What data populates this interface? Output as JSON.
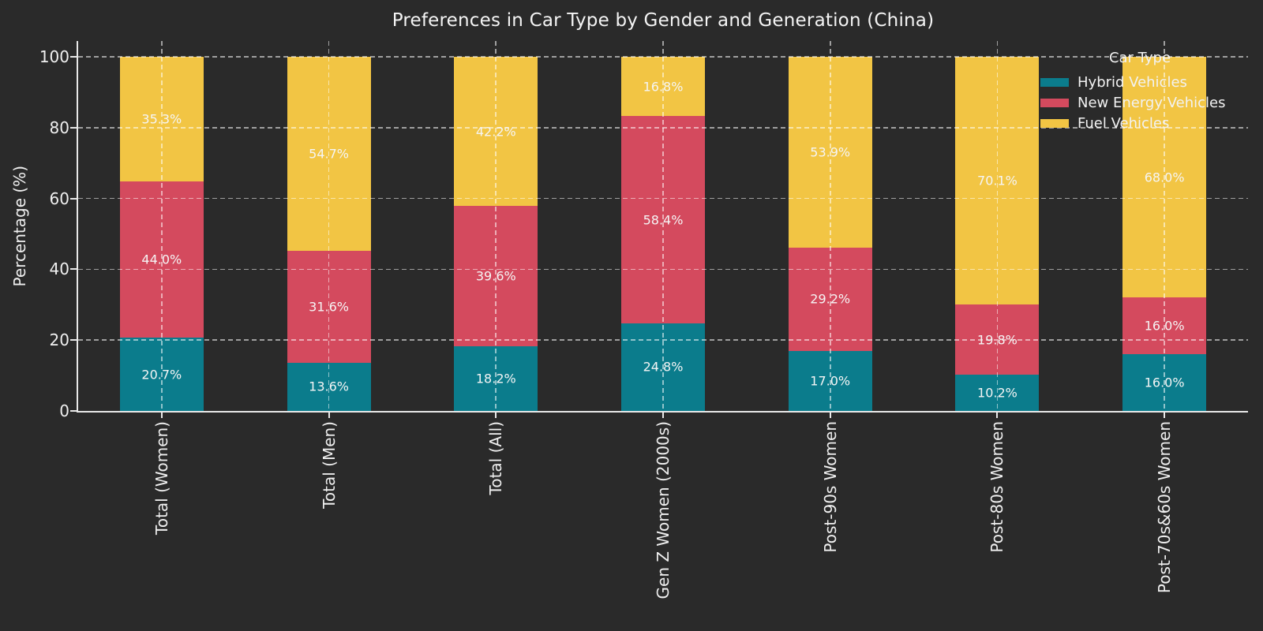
{
  "chart_data": {
    "type": "bar",
    "stacked": true,
    "title": "Preferences in Car Type by Gender and Generation (China)",
    "xlabel": "",
    "ylabel": "Percentage (%)",
    "ylim": [
      0,
      105
    ],
    "yticks": [
      0,
      20,
      40,
      60,
      80,
      100
    ],
    "grid": true,
    "grid_style": "dashed",
    "legend_title": "Car Type",
    "legend_position": "upper right",
    "value_label_format": "{v}%",
    "categories": [
      "Total (Women)",
      "Total (Men)",
      "Total (All)",
      "Gen Z Women (2000s)",
      "Post-90s Women",
      "Post-80s Women",
      "Post-70s&60s Women"
    ],
    "series": [
      {
        "name": "Hybrid Vehicles",
        "color": "#0b7c8c",
        "values": [
          20.7,
          13.6,
          18.2,
          24.8,
          17.0,
          10.2,
          16.0
        ]
      },
      {
        "name": "New Energy Vehicles",
        "color": "#d44a5e",
        "values": [
          44.0,
          31.6,
          39.6,
          58.4,
          29.2,
          19.8,
          16.0
        ]
      },
      {
        "name": "Fuel Vehicles",
        "color": "#f2c544",
        "values": [
          35.3,
          54.7,
          42.2,
          16.8,
          53.9,
          70.1,
          68.0
        ]
      }
    ]
  },
  "colors": {
    "background": "#2a2a2a",
    "text": "#efefef",
    "grid": "rgba(255,255,255,0.55)",
    "spine": "#e8e8e8",
    "value_label": "#f5f5f5"
  }
}
